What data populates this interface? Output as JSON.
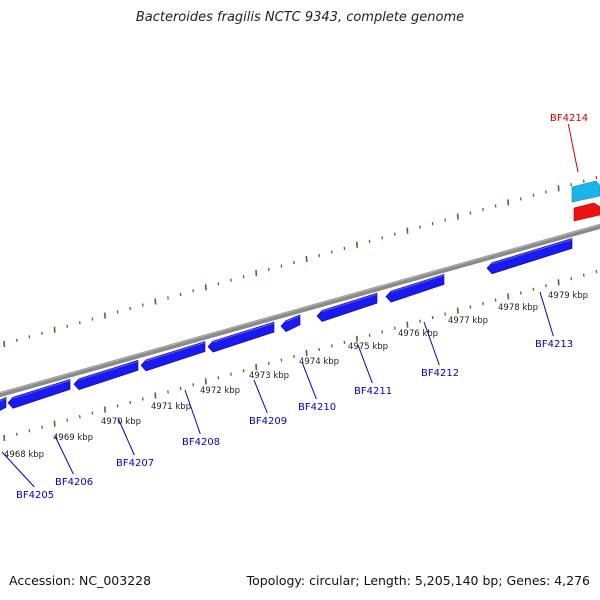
{
  "title": "Bacteroides fragilis NCTC 9343, complete genome",
  "footer": {
    "accession": "Accession: NC_003228",
    "summary": "Topology: circular; Length: 5,205,140 bp; Genes: 4,276"
  },
  "kbp_labels": [
    "4968 kbp",
    "4969 kbp",
    "4970 kbp",
    "4971 kbp",
    "4972 kbp",
    "4973 kbp",
    "4974 kbp",
    "4975 kbp",
    "4976 kbp",
    "4977 kbp",
    "4978 kbp",
    "4979 kbp"
  ],
  "genes": [
    {
      "name": "BF4205",
      "color": "#0000cc"
    },
    {
      "name": "BF4206",
      "color": "#0000cc"
    },
    {
      "name": "BF4207",
      "color": "#0000cc"
    },
    {
      "name": "BF4208",
      "color": "#0000cc"
    },
    {
      "name": "BF4209",
      "color": "#0000cc"
    },
    {
      "name": "BF4210",
      "color": "#0000cc"
    },
    {
      "name": "BF4211",
      "color": "#0000cc"
    },
    {
      "name": "BF4212",
      "color": "#0000cc"
    },
    {
      "name": "BF4213",
      "color": "#0000cc"
    },
    {
      "name": "BF4214",
      "color": "#cc0000"
    }
  ],
  "colors": {
    "backbone": "#8a8a8a",
    "gene_fill": "#1a1aee",
    "tick": "#2e7d1e",
    "forward_gene_a": "#19b4ea",
    "forward_gene_b": "#ee1111"
  }
}
